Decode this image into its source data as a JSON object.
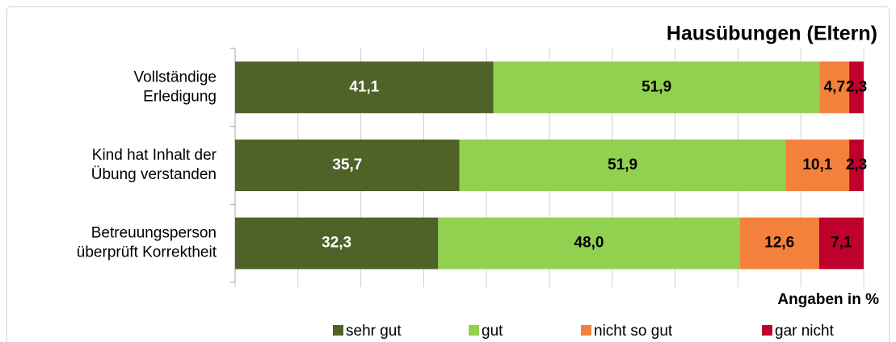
{
  "chart_data": {
    "type": "stacked_bar_horizontal",
    "title": "Hausübungen (Eltern)",
    "x_label": "Angaben in %",
    "categories": [
      [
        "Vollständige",
        "Erledigung"
      ],
      [
        "Kind hat Inhalt der",
        "Übung verstanden"
      ],
      [
        "Betreuungsperson",
        "überprüft Korrektheit"
      ]
    ],
    "series": [
      {
        "name": "sehr gut",
        "color": "#4f6228",
        "values": [
          41.1,
          35.7,
          32.3
        ],
        "value_labels": [
          "41,1",
          "35,7",
          "32,3"
        ]
      },
      {
        "name": "gut",
        "color": "#92d050",
        "values": [
          51.9,
          51.9,
          48.0
        ],
        "value_labels": [
          "51,9",
          "51,9",
          "48,0"
        ]
      },
      {
        "name": "nicht so gut",
        "color": "#f3813b",
        "values": [
          4.7,
          10.1,
          12.6
        ],
        "value_labels": [
          "4,7",
          "10,1",
          "12,6"
        ]
      },
      {
        "name": "gar nicht",
        "color": "#c0002c",
        "values": [
          2.3,
          2.3,
          7.1
        ],
        "value_labels": [
          "2,3",
          "2,3",
          "7,1"
        ]
      }
    ],
    "xlim": [
      0,
      100
    ],
    "xticks": [
      0,
      10,
      20,
      30,
      40,
      50,
      60,
      70,
      80,
      90,
      100
    ],
    "grid": true
  }
}
